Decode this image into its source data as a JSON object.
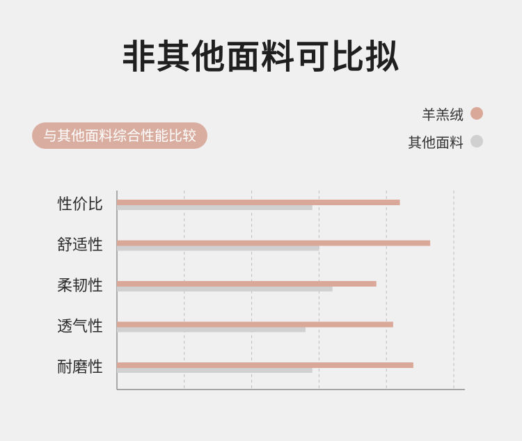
{
  "title": "非其他面料可比拟",
  "pill_label": "与其他面料综合性能比较",
  "legend": [
    {
      "name": "羊羔绒",
      "color": "#d9a898"
    },
    {
      "name": "其他面料",
      "color": "#d0d0d0"
    }
  ],
  "chart_data": {
    "type": "bar",
    "orientation": "horizontal",
    "categories": [
      "性价比",
      "舒适性",
      "柔韧性",
      "透气性",
      "耐磨性"
    ],
    "series": [
      {
        "name": "羊羔绒",
        "color": "#d9a898",
        "values": [
          84,
          93,
          77,
          82,
          88
        ]
      },
      {
        "name": "其他面料",
        "color": "#d0d0d0",
        "values": [
          58,
          60,
          64,
          56,
          58
        ]
      }
    ],
    "xlim": [
      0,
      100
    ],
    "grid": true,
    "legend_position": "top-right"
  }
}
